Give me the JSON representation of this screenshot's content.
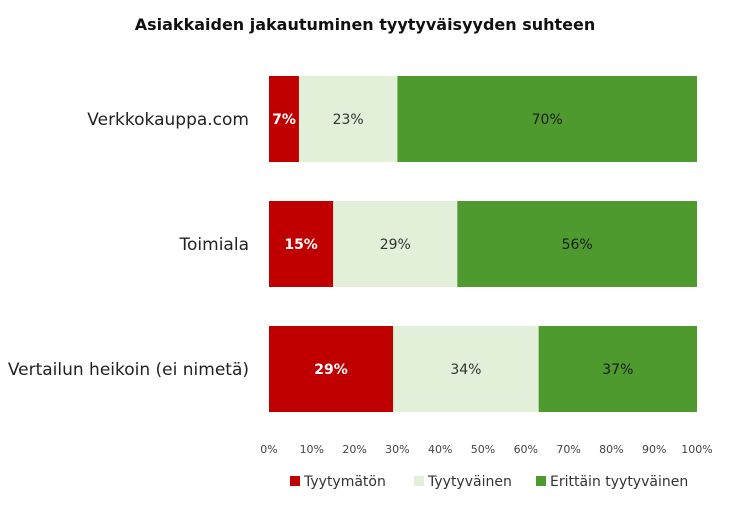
{
  "chart_data": {
    "type": "bar",
    "orientation": "horizontal",
    "stacked": "percent",
    "title": "Asiakkaiden jakautuminen tyytyväisyyden suhteen",
    "categories": [
      "Verkkokauppa.com",
      "Toimiala",
      "Vertailun heikoin (ei nimetä)"
    ],
    "series": [
      {
        "name": "Tyytymätön",
        "color": "#c00000",
        "label_color": "#ffffff",
        "values": [
          7,
          15,
          29
        ],
        "labels": [
          "7%",
          "15%",
          "29%"
        ]
      },
      {
        "name": "Tyytyväinen",
        "color": "#e2f0d9",
        "label_color": "#333333",
        "values": [
          23,
          29,
          34
        ],
        "labels": [
          "23%",
          "29%",
          "34%"
        ]
      },
      {
        "name": "Erittäin tyytyväinen",
        "color": "#4e9a2f",
        "label_color": "#1a1a1a",
        "values": [
          70,
          56,
          37
        ],
        "labels": [
          "70%",
          "56%",
          "37%"
        ]
      }
    ],
    "xlim": [
      0,
      100
    ],
    "xticks": [
      "0%",
      "10%",
      "20%",
      "30%",
      "40%",
      "50%",
      "60%",
      "70%",
      "80%",
      "90%",
      "100%"
    ],
    "grid": false,
    "legend_position": "bottom"
  }
}
